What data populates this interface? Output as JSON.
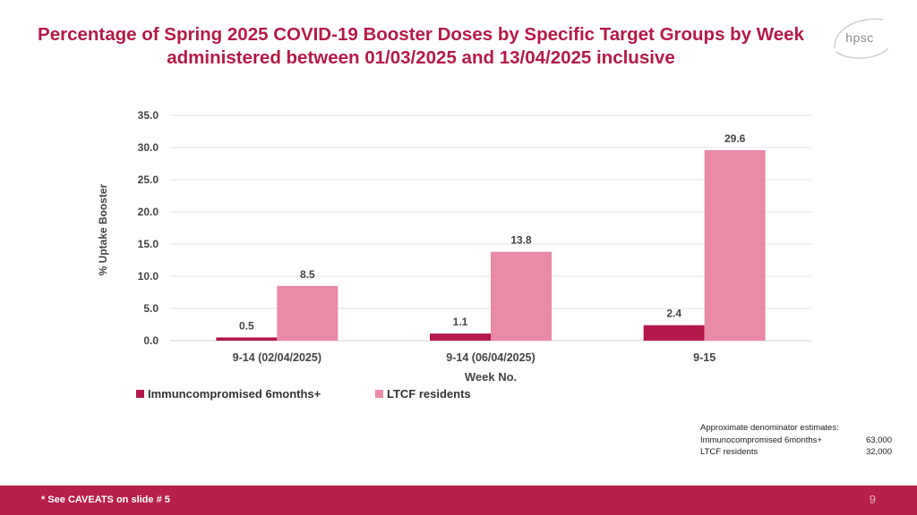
{
  "title": "Percentage of Spring 2025 COVID-19 Booster Doses by Specific Target Groups by Week administered between 01/03/2025 and 13/04/2025 inclusive",
  "logo": {
    "text": "hpsc",
    "icon": "hpsc-logo-icon"
  },
  "colors": {
    "accent": "#b31b45",
    "series1": "#b5184a",
    "series2": "#e98aa6",
    "footer": "#b7204a"
  },
  "chart_data": {
    "type": "bar",
    "categories": [
      "9-14 (02/04/2025)",
      "9-14 (06/04/2025)",
      "9-15"
    ],
    "series": [
      {
        "name": "Immuncompromised 6months+",
        "values": [
          0.5,
          1.1,
          2.4
        ]
      },
      {
        "name": "LTCF residents",
        "values": [
          8.5,
          13.8,
          29.6
        ]
      }
    ],
    "ylabel": "% Uptake Booster",
    "xlabel": "Week No.",
    "ylim": [
      0,
      35
    ],
    "yticks": [
      "0.0",
      "5.0",
      "10.0",
      "15.0",
      "20.0",
      "25.0",
      "30.0",
      "35.0"
    ],
    "data_labels": [
      [
        "0.5",
        "1.1",
        "2.4"
      ],
      [
        "8.5",
        "13.8",
        "29.6"
      ]
    ],
    "grid": true,
    "legend_position": "bottom-left"
  },
  "denominators": {
    "heading": "Approximate denominator estimates:",
    "rows": [
      {
        "label": "Immunocompromised 6months+",
        "value": "63,000"
      },
      {
        "label": "LTCF residents",
        "value": "32,000"
      }
    ]
  },
  "footer": {
    "caveat": "* See CAVEATS on slide # 5",
    "page": "9"
  }
}
